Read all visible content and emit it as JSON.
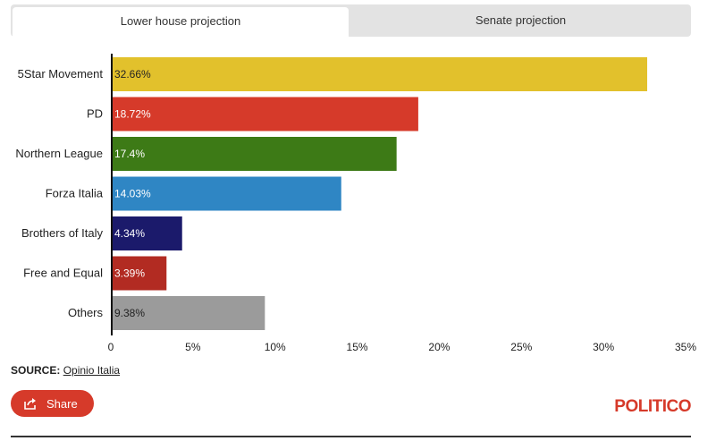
{
  "tabs": {
    "lower_house": "Lower house projection",
    "senate": "Senate projection"
  },
  "source": {
    "label": "SOURCE:",
    "link_text": "Opinio Italia"
  },
  "share": {
    "label": "Share",
    "icon": "share-icon"
  },
  "logo": "POLITICO",
  "colors": {
    "accent": "#d63a2a"
  },
  "chart_data": {
    "type": "bar",
    "orientation": "horizontal",
    "categories": [
      "5Star Movement",
      "PD",
      "Northern League",
      "Forza Italia",
      "Brothers of Italy",
      "Free and Equal",
      "Others"
    ],
    "values": [
      32.66,
      18.72,
      17.4,
      14.03,
      4.34,
      3.39,
      9.38
    ],
    "data_labels": [
      "32.66%",
      "18.72%",
      "17.4%",
      "14.03%",
      "4.34%",
      "3.39%",
      "9.38%"
    ],
    "colors": [
      "#e2c12c",
      "#d63a2a",
      "#3d7a16",
      "#2f86c4",
      "#1b1a6b",
      "#b22b22",
      "#9b9b9b"
    ],
    "label_colors": [
      "#222222",
      "#ffffff",
      "#ffffff",
      "#ffffff",
      "#ffffff",
      "#ffffff",
      "#222222"
    ],
    "xlim": [
      0,
      35
    ],
    "ticks": [
      0,
      5,
      10,
      15,
      20,
      25,
      30,
      35
    ],
    "tick_labels": [
      "0",
      "5%",
      "10%",
      "15%",
      "20%",
      "25%",
      "30%",
      "35%"
    ],
    "title": "",
    "xlabel": "",
    "ylabel": "",
    "grid": false
  }
}
